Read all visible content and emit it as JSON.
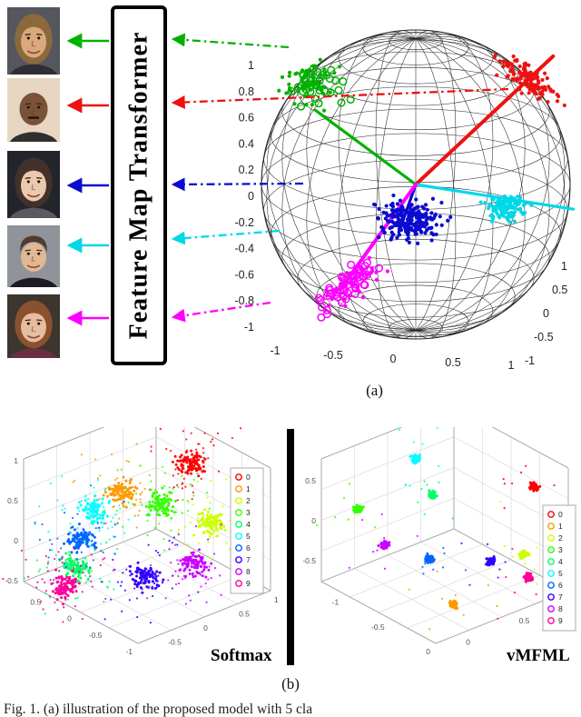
{
  "figure": {
    "caption": "Fig. 1. (a) illustration of the proposed model with 5 cla",
    "panel_a_label": "(a)",
    "panel_b_label": "(b)",
    "transformer_box_label": "Feature Map Transformer"
  },
  "faces": [
    {
      "name": "woman-light-brown-hair",
      "skin": "#d9a87c",
      "hair": "#8a6a3c",
      "bg": "#55565e",
      "clothes": "#2e2e34",
      "style": "long"
    },
    {
      "name": "bald-man-dark-skin",
      "skin": "#7a5238",
      "hair": "#44302a",
      "bg": "#e7d7c2",
      "clothes": "#30302e",
      "style": "bald",
      "mustache": true
    },
    {
      "name": "woman-dark-hair",
      "skin": "#ecc9ac",
      "hair": "#42302a",
      "bg": "#23252c",
      "clothes": "#5a5a60",
      "style": "long"
    },
    {
      "name": "man-dark-hair",
      "skin": "#e0b894",
      "hair": "#4e3c32",
      "bg": "#90939a",
      "clothes": "#1c1c22",
      "style": "short"
    },
    {
      "name": "woman-auburn-hair",
      "skin": "#e6bd9e",
      "hair": "#8a512f",
      "bg": "#3c362f",
      "clothes": "#6a3040",
      "style": "long"
    }
  ],
  "chart_data": [
    {
      "type": "scatter",
      "projection": "sphere3d-wireframe",
      "z_ticks": [
        1,
        0.8,
        0.6,
        0.4,
        0.2,
        0,
        -0.2,
        -0.4,
        -0.6,
        -0.8,
        -1
      ],
      "x_ticks": [
        -1,
        -0.5,
        0,
        0.5,
        1
      ],
      "y_ticks": [
        1,
        0.5,
        0,
        -0.5,
        -1
      ],
      "clusters": [
        {
          "label": "identity-1",
          "color": "#00b200",
          "center": [
            -0.67,
            0.64
          ],
          "spread": [
            0.2,
            0.15
          ],
          "rot": -20,
          "n": 95,
          "marker": "mixed",
          "ray": [
            -0.65,
            0.48
          ],
          "ray_width": 3.2
        },
        {
          "label": "identity-2",
          "color": "#ee1111",
          "center": [
            0.74,
            0.68
          ],
          "spread": [
            0.22,
            0.08
          ],
          "rot": 38,
          "n": 130,
          "marker": "filled",
          "ray": [
            0.89,
            0.83
          ],
          "ray_width": 4
        },
        {
          "label": "identity-3",
          "color": "#0a0ad0",
          "center": [
            -0.03,
            -0.23
          ],
          "spread": [
            0.2,
            0.12
          ],
          "rot": 0,
          "n": 220,
          "marker": "filled",
          "ray": [
            -0.11,
            -0.31
          ],
          "ray_width": 3.2
        },
        {
          "label": "identity-4",
          "color": "#00d8e8",
          "center": [
            0.59,
            -0.15
          ],
          "spread": [
            0.12,
            0.08
          ],
          "rot": 0,
          "n": 130,
          "marker": "filled",
          "ray": [
            1.02,
            -0.16
          ],
          "ray_width": 3.2
        },
        {
          "label": "identity-5",
          "color": "#ff00ff",
          "center": [
            -0.43,
            -0.64
          ],
          "spread": [
            0.25,
            0.09
          ],
          "rot": -38,
          "n": 85,
          "marker": "open",
          "ray": [
            -0.49,
            -0.68
          ],
          "ray_width": 4
        }
      ]
    },
    {
      "type": "scatter",
      "title": "Softmax",
      "legend": [
        "0",
        "1",
        "2",
        "3",
        "4",
        "5",
        "6",
        "7",
        "8",
        "9"
      ],
      "colors": [
        "#ff0000",
        "#ff9900",
        "#ccff00",
        "#33ff00",
        "#00ff66",
        "#00ffff",
        "#0066ff",
        "#3300ff",
        "#cc00ff",
        "#ff0099"
      ],
      "z_ticks": [
        1,
        0.5,
        0,
        -0.5
      ],
      "y_ticks": [
        0.5,
        0,
        -0.5,
        -1
      ],
      "x_ticks": [
        -0.5,
        0,
        0.5,
        1
      ],
      "n": 95,
      "halo_n": 45,
      "spread": 0.13,
      "halo": 0.45,
      "clusters": [
        {
          "class": "0",
          "center": [
            0.42,
            0.8
          ]
        },
        {
          "class": "1",
          "center": [
            -0.22,
            0.48
          ]
        },
        {
          "class": "2",
          "center": [
            0.62,
            0.15
          ]
        },
        {
          "class": "3",
          "center": [
            0.15,
            0.35
          ]
        },
        {
          "class": "4",
          "center": [
            -0.65,
            -0.35
          ]
        },
        {
          "class": "5",
          "center": [
            -0.48,
            0.28
          ]
        },
        {
          "class": "6",
          "center": [
            -0.6,
            -0.05
          ]
        },
        {
          "class": "7",
          "center": [
            0.0,
            -0.45
          ]
        },
        {
          "class": "8",
          "center": [
            0.45,
            -0.3
          ]
        },
        {
          "class": "9",
          "center": [
            -0.75,
            -0.55
          ]
        }
      ]
    },
    {
      "type": "scatter",
      "title": "vMFML",
      "legend": [
        "0",
        "1",
        "2",
        "3",
        "4",
        "5",
        "6",
        "7",
        "8",
        "9"
      ],
      "colors": [
        "#ff0000",
        "#ff9900",
        "#ccff00",
        "#33ff00",
        "#00ff66",
        "#00ffff",
        "#0066ff",
        "#3300ff",
        "#cc00ff",
        "#ff0099"
      ],
      "z_ticks": [
        0.5,
        0,
        -0.5
      ],
      "y_ticks": [
        -1,
        -0.5,
        0
      ],
      "x_ticks": [
        0,
        0.5,
        1
      ],
      "n": 80,
      "halo_n": 8,
      "spread": 0.04,
      "halo": 0.4,
      "clusters": [
        {
          "class": "0",
          "center": [
            0.85,
            0.55
          ]
        },
        {
          "class": "1",
          "center": [
            0.1,
            -0.75
          ]
        },
        {
          "class": "2",
          "center": [
            0.75,
            -0.2
          ]
        },
        {
          "class": "3",
          "center": [
            -0.8,
            0.3
          ]
        },
        {
          "class": "4",
          "center": [
            -0.1,
            0.45
          ]
        },
        {
          "class": "5",
          "center": [
            -0.25,
            0.85
          ]
        },
        {
          "class": "6",
          "center": [
            -0.12,
            -0.25
          ]
        },
        {
          "class": "7",
          "center": [
            0.45,
            -0.28
          ]
        },
        {
          "class": "8",
          "center": [
            -0.55,
            -0.1
          ]
        },
        {
          "class": "9",
          "center": [
            0.8,
            -0.45
          ]
        }
      ]
    }
  ]
}
